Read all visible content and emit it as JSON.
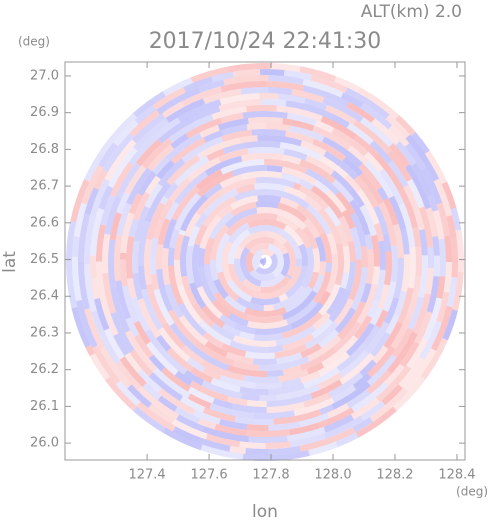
{
  "chart_data": {
    "type": "radar-image",
    "title": "2017/10/24 22:41:30",
    "annotation": "ALT(km) 2.0",
    "x_label": "lon",
    "x_unit": "(deg)",
    "y_label": "lat",
    "y_unit": "(deg)",
    "xlim": [
      127.135,
      128.426
    ],
    "ylim": [
      25.954,
      27.038
    ],
    "xticks": [
      127.4,
      127.6,
      127.8,
      {
        "value": 128,
        "label": "128.0"
      },
      128.2,
      128.4
    ],
    "yticks": [
      {
        "value": 26,
        "label": "26.0"
      },
      26.1,
      26.2,
      26.3,
      26.4,
      26.5,
      26.6,
      26.7,
      26.8,
      26.9,
      {
        "value": 27,
        "label": "27.0"
      }
    ]
  }
}
